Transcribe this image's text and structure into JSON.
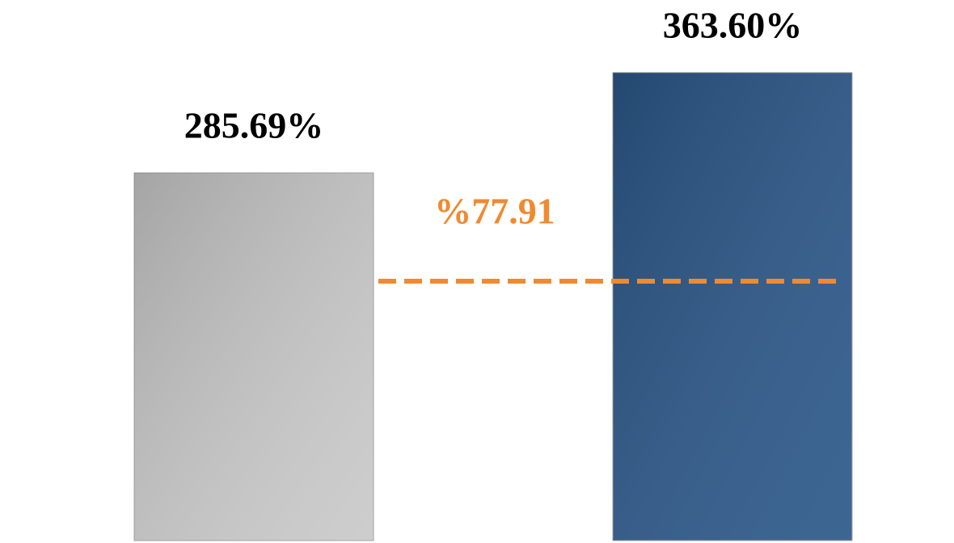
{
  "chart_data": {
    "type": "bar",
    "categories": [
      null,
      null
    ],
    "values": [
      285.69,
      363.6
    ],
    "value_labels": [
      "285.69%",
      "363.60%"
    ],
    "colors": [
      "#c9c9c9",
      "#2c5889"
    ],
    "ylim": [
      0,
      420
    ],
    "annotation": "%77.91",
    "annotation_color": "#f08a30"
  }
}
